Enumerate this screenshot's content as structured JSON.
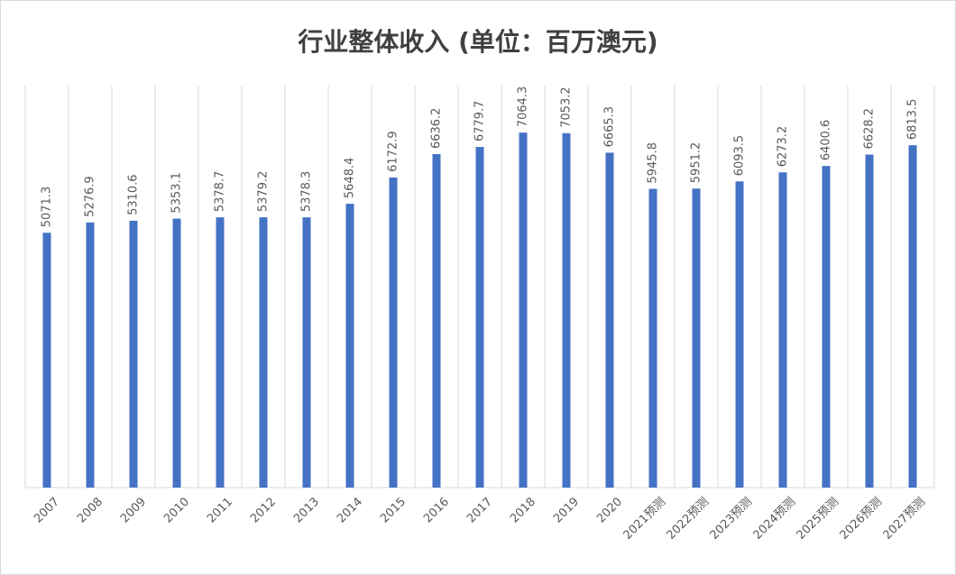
{
  "chart_data": {
    "type": "bar",
    "title": "行业整体收入 (单位：百万澳元)",
    "categories": [
      "2007",
      "2008",
      "2009",
      "2010",
      "2011",
      "2012",
      "2013",
      "2014",
      "2015",
      "2016",
      "2017",
      "2018",
      "2019",
      "2020",
      "2021预测",
      "2022预测",
      "2023预测",
      "2024预测",
      "2025预测",
      "2026预测",
      "2027预测"
    ],
    "values": [
      5071.3,
      5276.9,
      5310.6,
      5353.1,
      5378.7,
      5379.2,
      5378.3,
      5648.4,
      6172.9,
      6636.2,
      6779.7,
      7064.3,
      7053.2,
      6665.3,
      5945.8,
      5951.2,
      6093.5,
      6273.2,
      6400.6,
      6628.2,
      6813.5
    ],
    "color": "#4472c4",
    "ylim": [
      0,
      8000
    ],
    "grid": true
  }
}
